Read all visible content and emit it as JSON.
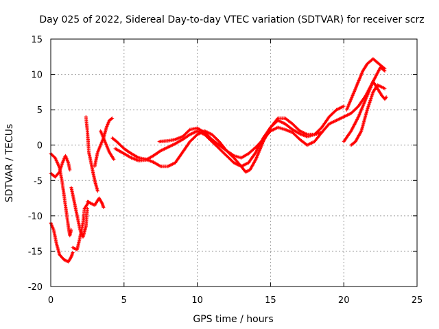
{
  "chart_data": {
    "type": "scatter",
    "title": "Day 025 of 2022, Sidereal Day-to-day VTEC variation (SDTVAR) for receiver scrz",
    "xlabel": "GPS time / hours",
    "ylabel": "SDTVAR / TECUs",
    "xlim": [
      0,
      25
    ],
    "ylim": [
      -20,
      15
    ],
    "xticks": [
      0,
      5,
      10,
      15,
      20,
      25
    ],
    "yticks": [
      -20,
      -15,
      -10,
      -5,
      0,
      5,
      10,
      15
    ],
    "grid": true,
    "marker": "+",
    "color": "#ff0000",
    "series": [
      {
        "name": "trace-1",
        "points": [
          [
            0,
            -11
          ],
          [
            0.2,
            -12
          ],
          [
            0.4,
            -14
          ],
          [
            0.6,
            -15.5
          ],
          [
            0.9,
            -16.2
          ],
          [
            1.2,
            -16.5
          ],
          [
            1.4,
            -15.8
          ],
          [
            1.5,
            -15.2
          ]
        ]
      },
      {
        "name": "trace-2",
        "points": [
          [
            0,
            -1.2
          ],
          [
            0.3,
            -1.8
          ],
          [
            0.6,
            -3.2
          ],
          [
            0.8,
            -5.5
          ],
          [
            1.0,
            -8.5
          ],
          [
            1.2,
            -11.5
          ],
          [
            1.3,
            -12.8
          ],
          [
            1.4,
            -12
          ]
        ]
      },
      {
        "name": "trace-3",
        "points": [
          [
            0,
            -4
          ],
          [
            0.3,
            -4.5
          ],
          [
            0.6,
            -3.8
          ],
          [
            0.8,
            -2.5
          ],
          [
            1.0,
            -1.5
          ],
          [
            1.2,
            -2.5
          ],
          [
            1.3,
            -3.5
          ]
        ]
      },
      {
        "name": "trace-4",
        "points": [
          [
            1.4,
            -6
          ],
          [
            1.6,
            -8
          ],
          [
            1.8,
            -10
          ],
          [
            2.0,
            -12
          ],
          [
            2.2,
            -13
          ],
          [
            2.4,
            -11.5
          ],
          [
            2.5,
            -9
          ]
        ]
      },
      {
        "name": "trace-5",
        "points": [
          [
            1.5,
            -14.5
          ],
          [
            1.8,
            -14.8
          ],
          [
            2.0,
            -13
          ],
          [
            2.2,
            -11
          ],
          [
            2.3,
            -9
          ],
          [
            2.6,
            -8
          ]
        ]
      },
      {
        "name": "trace-6",
        "points": [
          [
            2.5,
            -8
          ],
          [
            3.0,
            -8.5
          ],
          [
            3.3,
            -7.5
          ],
          [
            3.5,
            -8.2
          ],
          [
            3.6,
            -8.8
          ]
        ]
      },
      {
        "name": "trace-7",
        "points": [
          [
            2.4,
            4
          ],
          [
            2.5,
            2
          ],
          [
            2.6,
            -1
          ],
          [
            2.8,
            -3
          ],
          [
            3.0,
            -5
          ],
          [
            3.2,
            -6.5
          ]
        ]
      },
      {
        "name": "trace-8",
        "points": [
          [
            3.0,
            -3
          ],
          [
            3.2,
            -1
          ],
          [
            3.4,
            0
          ],
          [
            3.6,
            1
          ],
          [
            3.8,
            2.5
          ],
          [
            4.0,
            3.5
          ],
          [
            4.2,
            3.8
          ]
        ]
      },
      {
        "name": "trace-9",
        "points": [
          [
            3.4,
            2
          ],
          [
            3.6,
            1
          ],
          [
            3.8,
            0
          ],
          [
            4.0,
            -1
          ],
          [
            4.3,
            -2
          ]
        ]
      },
      {
        "name": "trace-10",
        "points": [
          [
            4.2,
            1
          ],
          [
            4.5,
            0.5
          ],
          [
            5,
            -0.5
          ],
          [
            5.5,
            -1.2
          ],
          [
            6,
            -1.8
          ],
          [
            6.5,
            -2
          ],
          [
            7,
            -2.4
          ],
          [
            7.5,
            -3
          ],
          [
            8,
            -3
          ],
          [
            8.5,
            -2.5
          ],
          [
            9,
            -1
          ],
          [
            9.5,
            0.5
          ],
          [
            10,
            1.5
          ],
          [
            10.5,
            2
          ],
          [
            11,
            1.5
          ],
          [
            11.5,
            0.5
          ],
          [
            12,
            -0.8
          ],
          [
            12.5,
            -1.8
          ],
          [
            13,
            -3
          ],
          [
            13.3,
            -3.8
          ],
          [
            13.6,
            -3.5
          ],
          [
            14,
            -2
          ],
          [
            14.5,
            0.5
          ],
          [
            15,
            2.5
          ],
          [
            15.5,
            3.8
          ],
          [
            16,
            3.8
          ],
          [
            16.5,
            3
          ],
          [
            17,
            2
          ],
          [
            17.5,
            1.5
          ],
          [
            18,
            1.5
          ],
          [
            18.5,
            2.5
          ],
          [
            19,
            4
          ],
          [
            19.5,
            5
          ],
          [
            20,
            5.5
          ]
        ]
      },
      {
        "name": "trace-11",
        "points": [
          [
            4.4,
            -0.5
          ],
          [
            5,
            -1.2
          ],
          [
            5.5,
            -1.8
          ],
          [
            6,
            -2.2
          ],
          [
            6.5,
            -2.1
          ],
          [
            7,
            -1.5
          ],
          [
            7.5,
            -0.8
          ],
          [
            8,
            -0.3
          ],
          [
            8.5,
            0.2
          ],
          [
            9,
            0.8
          ],
          [
            9.5,
            1.5
          ],
          [
            10,
            2
          ],
          [
            10.5,
            1.5
          ],
          [
            11,
            0.5
          ],
          [
            11.5,
            -0.5
          ],
          [
            12,
            -1.5
          ],
          [
            12.5,
            -2.5
          ],
          [
            13,
            -3
          ],
          [
            13.5,
            -2.5
          ],
          [
            14,
            -1
          ],
          [
            14.5,
            1
          ],
          [
            15,
            2.5
          ],
          [
            15.5,
            3.5
          ],
          [
            16,
            3
          ],
          [
            16.5,
            2.2
          ],
          [
            17,
            1.6
          ],
          [
            17.5,
            1.2
          ],
          [
            18,
            1.5
          ],
          [
            18.5,
            1.8
          ]
        ]
      },
      {
        "name": "trace-12",
        "points": [
          [
            7.4,
            0.5
          ],
          [
            8,
            0.6
          ],
          [
            8.5,
            0.8
          ],
          [
            9,
            1.2
          ],
          [
            9.5,
            2.2
          ],
          [
            10,
            2.4
          ],
          [
            10.5,
            1.8
          ],
          [
            11,
            0.8
          ],
          [
            11.5,
            0
          ],
          [
            12,
            -0.8
          ],
          [
            12.5,
            -1.5
          ],
          [
            13,
            -1.8
          ],
          [
            13.5,
            -1.2
          ],
          [
            14,
            -0.3
          ],
          [
            14.5,
            0.8
          ],
          [
            15,
            2.0
          ],
          [
            15.5,
            2.5
          ],
          [
            16,
            2.2
          ],
          [
            16.5,
            1.8
          ],
          [
            17,
            0.8
          ],
          [
            17.5,
            0
          ],
          [
            18,
            0.5
          ],
          [
            18.5,
            1.8
          ],
          [
            19,
            3
          ],
          [
            19.5,
            3.5
          ],
          [
            20,
            4
          ],
          [
            20.5,
            4.5
          ],
          [
            21,
            5.5
          ],
          [
            21.5,
            7
          ],
          [
            22,
            9
          ],
          [
            22.5,
            11
          ],
          [
            22.8,
            10.5
          ]
        ]
      },
      {
        "name": "trace-13",
        "points": [
          [
            20,
            0.5
          ],
          [
            20.5,
            2
          ],
          [
            21,
            4
          ],
          [
            21.5,
            6.5
          ],
          [
            22,
            9
          ],
          [
            22.3,
            8
          ],
          [
            22.6,
            7
          ],
          [
            22.8,
            6.5
          ],
          [
            22.9,
            6.8
          ]
        ]
      },
      {
        "name": "trace-14",
        "points": [
          [
            20.5,
            0
          ],
          [
            20.8,
            0.5
          ],
          [
            21.2,
            2
          ],
          [
            21.6,
            5
          ],
          [
            22,
            7.5
          ],
          [
            22.3,
            8.5
          ],
          [
            22.6,
            8.2
          ],
          [
            22.8,
            8
          ]
        ]
      },
      {
        "name": "trace-15",
        "points": [
          [
            20.2,
            5
          ],
          [
            20.6,
            7
          ],
          [
            21,
            9
          ],
          [
            21.3,
            10.5
          ],
          [
            21.6,
            11.5
          ],
          [
            22,
            12.2
          ],
          [
            22.4,
            11.5
          ],
          [
            22.8,
            10.8
          ]
        ]
      }
    ]
  }
}
